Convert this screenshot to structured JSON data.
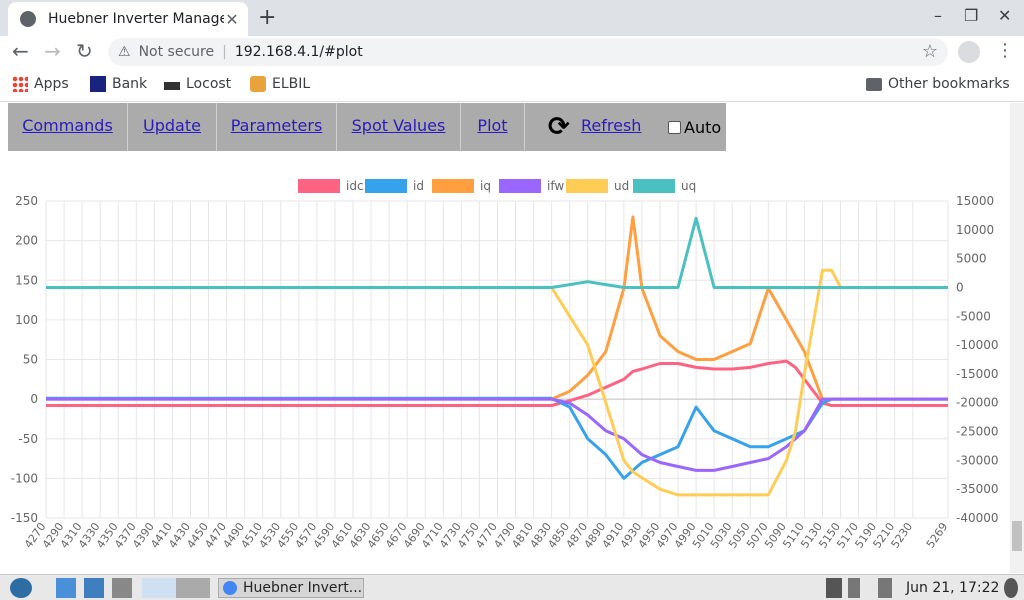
{
  "browser": {
    "tab_title": "Huebner Inverter Manage",
    "tab_close": "✕",
    "new_tab": "+",
    "win_min": "–",
    "win_max": "❐",
    "win_close": "✕",
    "back": "←",
    "forward": "→",
    "reload": "↻",
    "warn_icon": "⚠",
    "not_secure": "Not secure",
    "separator": "|",
    "url": "192.168.4.1/#plot",
    "star": "☆",
    "menu": "⋮"
  },
  "bookmarks": {
    "apps": "Apps",
    "bank": "Bank",
    "locost": "Locost",
    "elbil": "ELBIL",
    "other": "Other bookmarks"
  },
  "nav": {
    "commands": "Commands",
    "update": "Update",
    "parameters": "Parameters",
    "spot_values": "Spot Values",
    "plot": "Plot",
    "refresh_icon": "⟳",
    "refresh": "Refresh",
    "auto": "Auto"
  },
  "taskbar": {
    "window_label": "Huebner Invert...",
    "clock": "Jun 21, 17:22"
  },
  "chart_data": {
    "type": "line",
    "title": "",
    "x": [
      4270,
      4290,
      4310,
      4330,
      4350,
      4370,
      4390,
      4410,
      4430,
      4450,
      4470,
      4490,
      4510,
      4530,
      4550,
      4570,
      4590,
      4610,
      4630,
      4650,
      4670,
      4690,
      4710,
      4730,
      4750,
      4770,
      4790,
      4810,
      4830,
      4850,
      4870,
      4890,
      4910,
      4920,
      4930,
      4950,
      4970,
      4990,
      5010,
      5030,
      5050,
      5070,
      5090,
      5100,
      5110,
      5130,
      5140,
      5150,
      5170,
      5190,
      5210,
      5230,
      5269
    ],
    "x_tick_labels": [
      "4270",
      "4290",
      "4310",
      "4330",
      "4350",
      "4370",
      "4390",
      "4410",
      "4430",
      "4450",
      "4470",
      "4490",
      "4510",
      "4530",
      "4550",
      "4570",
      "4590",
      "4610",
      "4630",
      "4650",
      "4670",
      "4690",
      "4710",
      "4730",
      "4750",
      "4770",
      "4790",
      "4810",
      "4830",
      "4850",
      "4870",
      "4890",
      "4910",
      "4930",
      "4950",
      "4970",
      "4990",
      "5010",
      "5030",
      "5050",
      "5070",
      "5090",
      "5110",
      "5130",
      "5150",
      "5170",
      "5190",
      "5210",
      "5230",
      "5269"
    ],
    "y_left": {
      "min": -150,
      "max": 250,
      "ticks": [
        250,
        200,
        150,
        100,
        50,
        0,
        -50,
        -100,
        -150
      ]
    },
    "y_right": {
      "min": -40000,
      "max": 15000,
      "ticks": [
        15000,
        10000,
        5000,
        0,
        -5000,
        -10000,
        -15000,
        -20000,
        -25000,
        -30000,
        -35000,
        -40000
      ]
    },
    "grid": true,
    "legend_position": "top",
    "series": [
      {
        "name": "idc",
        "color": "#ff6384",
        "axis": "left",
        "values": [
          -8,
          -8,
          -8,
          -8,
          -8,
          -8,
          -8,
          -8,
          -8,
          -8,
          -8,
          -8,
          -8,
          -8,
          -8,
          -8,
          -8,
          -8,
          -8,
          -8,
          -8,
          -8,
          -8,
          -8,
          -8,
          -8,
          -8,
          -8,
          -8,
          -2,
          5,
          15,
          25,
          35,
          38,
          45,
          45,
          40,
          38,
          38,
          40,
          45,
          48,
          40,
          25,
          -5,
          -8,
          -8,
          -8,
          -8,
          -8,
          -8,
          -8
        ]
      },
      {
        "name": "id",
        "color": "#36a2eb",
        "axis": "left",
        "values": [
          1,
          1,
          1,
          1,
          1,
          1,
          1,
          1,
          1,
          1,
          1,
          1,
          1,
          1,
          1,
          1,
          1,
          1,
          1,
          1,
          1,
          1,
          1,
          1,
          1,
          1,
          1,
          1,
          1,
          -10,
          -50,
          -70,
          -100,
          -90,
          -80,
          -70,
          -60,
          -10,
          -40,
          -50,
          -60,
          -60,
          -50,
          -45,
          -40,
          -5,
          0,
          0,
          0,
          0,
          0,
          0,
          0
        ]
      },
      {
        "name": "iq",
        "color": "#ff9f40",
        "axis": "left",
        "values": [
          0,
          0,
          0,
          0,
          0,
          0,
          0,
          0,
          0,
          0,
          0,
          0,
          0,
          0,
          0,
          0,
          0,
          0,
          0,
          0,
          0,
          0,
          0,
          0,
          0,
          0,
          0,
          0,
          0,
          10,
          30,
          60,
          140,
          230,
          140,
          80,
          60,
          50,
          50,
          60,
          70,
          140,
          100,
          80,
          60,
          0,
          0,
          0,
          0,
          0,
          0,
          0,
          0
        ]
      },
      {
        "name": "ifw",
        "color": "#9966ff",
        "axis": "left",
        "values": [
          0,
          0,
          0,
          0,
          0,
          0,
          0,
          0,
          0,
          0,
          0,
          0,
          0,
          0,
          0,
          0,
          0,
          0,
          0,
          0,
          0,
          0,
          0,
          0,
          0,
          0,
          0,
          0,
          0,
          -5,
          -20,
          -40,
          -50,
          -60,
          -70,
          -80,
          -85,
          -90,
          -90,
          -85,
          -80,
          -75,
          -60,
          -50,
          -40,
          0,
          0,
          0,
          0,
          0,
          0,
          0,
          0
        ]
      },
      {
        "name": "ud",
        "color": "#ffcd56",
        "axis": "right",
        "values": [
          0,
          0,
          0,
          0,
          0,
          0,
          0,
          0,
          0,
          0,
          0,
          0,
          0,
          0,
          0,
          0,
          0,
          0,
          0,
          0,
          0,
          0,
          0,
          0,
          0,
          0,
          0,
          0,
          0,
          -5000,
          -10000,
          -20000,
          -30000,
          -32000,
          -33000,
          -35000,
          -36000,
          -36000,
          -36000,
          -36000,
          -36000,
          -36000,
          -30000,
          -25000,
          -15000,
          3000,
          3000,
          0,
          0,
          0,
          0,
          0,
          0
        ]
      },
      {
        "name": "uq",
        "color": "#4bc0c0",
        "axis": "right",
        "values": [
          0,
          0,
          0,
          0,
          0,
          0,
          0,
          0,
          0,
          0,
          0,
          0,
          0,
          0,
          0,
          0,
          0,
          0,
          0,
          0,
          0,
          0,
          0,
          0,
          0,
          0,
          0,
          0,
          0,
          500,
          1000,
          500,
          0,
          0,
          0,
          0,
          0,
          12000,
          0,
          0,
          0,
          0,
          0,
          0,
          0,
          0,
          0,
          0,
          0,
          0,
          0,
          0,
          0
        ]
      }
    ]
  }
}
